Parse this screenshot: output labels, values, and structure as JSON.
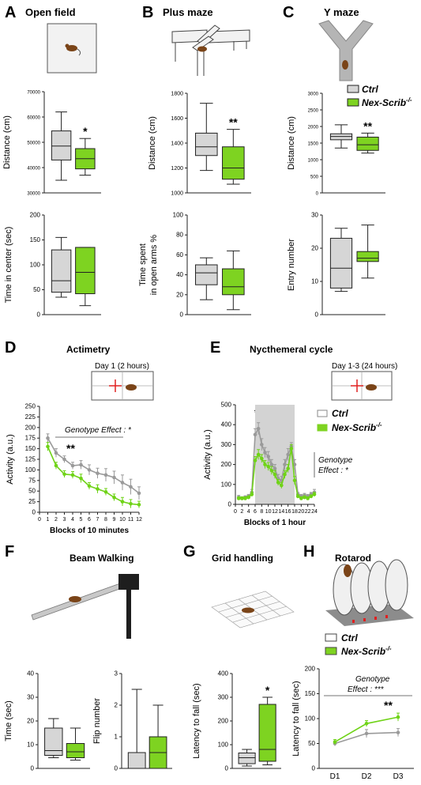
{
  "colors": {
    "ctrl_fill": "#d6d6d6",
    "mut_fill": "#7ed321",
    "ctrl_line": "#9a9a9a",
    "mut_line": "#6fd317",
    "stroke": "#222222",
    "shade": "#d3d3d3",
    "mouse": "#7a4418",
    "arrow": "#e02020"
  },
  "legend": {
    "ctrl": "Ctrl",
    "mut_base": "Nex-Scrib",
    "mut_sup": "-/-"
  },
  "panels": {
    "A": {
      "letter": "A",
      "title": "Open field"
    },
    "B": {
      "letter": "B",
      "title": "Plus maze"
    },
    "C": {
      "letter": "C",
      "title": "Y maze"
    },
    "D": {
      "letter": "D",
      "title": "Actimetry",
      "box_label": "Day 1 (2 hours)",
      "effect": "Genotype Effect : *",
      "star": "**"
    },
    "E": {
      "letter": "E",
      "title": "Nycthemeral cycle",
      "box_label": "Day 1-3 (24 hours)",
      "effect_line1": "Genotype",
      "effect_line2": "Effect : *",
      "star": "***"
    },
    "F": {
      "letter": "F",
      "title": "Beam Walking"
    },
    "G": {
      "letter": "G",
      "title": "Grid handling"
    },
    "H": {
      "letter": "H",
      "title": "Rotarod",
      "effect_line1": "Genotype",
      "effect_line2": "Effect : ***",
      "star": "**"
    }
  },
  "chart_data": [
    {
      "id": "A1",
      "type": "box",
      "ylabel": "Distance (cm)",
      "ylim": [
        30000,
        70000
      ],
      "yticks": [
        30000,
        40000,
        50000,
        60000,
        70000
      ],
      "star": "*",
      "groups": [
        {
          "name": "Ctrl",
          "whisker_low": 35000,
          "q1": 43000,
          "median": 48500,
          "q3": 54500,
          "whisker_high": 62000
        },
        {
          "name": "Nex-Scrib-/-",
          "whisker_low": 37000,
          "q1": 39500,
          "median": 43500,
          "q3": 47500,
          "whisker_high": 51500
        }
      ]
    },
    {
      "id": "A2",
      "type": "box",
      "ylabel": "Time in center (sec)",
      "ylim": [
        0,
        200
      ],
      "yticks": [
        0,
        50,
        100,
        150,
        200
      ],
      "star": "",
      "groups": [
        {
          "name": "Ctrl",
          "whisker_low": 35,
          "q1": 45,
          "median": 68,
          "q3": 130,
          "whisker_high": 155
        },
        {
          "name": "Nex-Scrib-/-",
          "whisker_low": 18,
          "q1": 42,
          "median": 85,
          "q3": 135,
          "whisker_high": 135
        }
      ]
    },
    {
      "id": "B1",
      "type": "box",
      "ylabel": "Distance (cm)",
      "ylim": [
        1000,
        1800
      ],
      "yticks": [
        1000,
        1200,
        1400,
        1600,
        1800
      ],
      "star": "**",
      "groups": [
        {
          "name": "Ctrl",
          "whisker_low": 1180,
          "q1": 1300,
          "median": 1370,
          "q3": 1480,
          "whisker_high": 1720
        },
        {
          "name": "Nex-Scrib-/-",
          "whisker_low": 1070,
          "q1": 1110,
          "median": 1200,
          "q3": 1370,
          "whisker_high": 1510
        }
      ]
    },
    {
      "id": "B2",
      "type": "box",
      "ylabel": "Time spent in open arms %",
      "ylabel_line1": "Time spent",
      "ylabel_line2": "in open arms %",
      "ylim": [
        0,
        100
      ],
      "yticks": [
        0,
        20,
        40,
        60,
        80,
        100
      ],
      "star": "",
      "groups": [
        {
          "name": "Ctrl",
          "whisker_low": 15,
          "q1": 30,
          "median": 42,
          "q3": 50,
          "whisker_high": 57
        },
        {
          "name": "Nex-Scrib-/-",
          "whisker_low": 5,
          "q1": 20,
          "median": 28,
          "q3": 46,
          "whisker_high": 64
        }
      ]
    },
    {
      "id": "C1",
      "type": "box",
      "ylabel": "Distance (cm)",
      "ylim": [
        0,
        3000
      ],
      "yticks": [
        0,
        500,
        1000,
        1500,
        2000,
        2500,
        3000
      ],
      "star": "**",
      "groups": [
        {
          "name": "Ctrl",
          "whisker_low": 1350,
          "q1": 1600,
          "median": 1700,
          "q3": 1780,
          "whisker_high": 2050
        },
        {
          "name": "Nex-Scrib-/-",
          "whisker_low": 1200,
          "q1": 1280,
          "median": 1450,
          "q3": 1680,
          "whisker_high": 1800
        }
      ]
    },
    {
      "id": "C2",
      "type": "box",
      "ylabel": "Entry number",
      "ylim": [
        0,
        30
      ],
      "yticks": [
        0,
        10,
        20,
        30
      ],
      "star": "",
      "groups": [
        {
          "name": "Ctrl",
          "whisker_low": 7,
          "q1": 8,
          "median": 14,
          "q3": 23,
          "whisker_high": 26
        },
        {
          "name": "Nex-Scrib-/-",
          "whisker_low": 11,
          "q1": 16,
          "median": 17,
          "q3": 19,
          "whisker_high": 27
        }
      ]
    },
    {
      "id": "D",
      "type": "line",
      "ylabel": "Activity (a.u.)",
      "xlabel": "Blocks of 10 minutes",
      "ylim": [
        0,
        250
      ],
      "yticks": [
        0,
        25,
        50,
        75,
        100,
        125,
        150,
        175,
        200,
        225,
        250
      ],
      "xlim": [
        0,
        12
      ],
      "xticks": [
        0,
        1,
        2,
        3,
        4,
        5,
        6,
        7,
        8,
        9,
        10,
        11,
        12
      ],
      "x": [
        1,
        2,
        3,
        4,
        5,
        6,
        7,
        8,
        9,
        10,
        11,
        12
      ],
      "series": [
        {
          "name": "Ctrl",
          "values": [
            175,
            140,
            125,
            110,
            112,
            100,
            92,
            88,
            82,
            70,
            60,
            45
          ],
          "err": [
            10,
            10,
            8,
            8,
            10,
            12,
            12,
            15,
            15,
            18,
            18,
            15
          ]
        },
        {
          "name": "Nex-Scrib-/-",
          "values": [
            155,
            110,
            90,
            88,
            80,
            62,
            55,
            48,
            35,
            25,
            20,
            18
          ],
          "err": [
            10,
            8,
            8,
            8,
            10,
            8,
            10,
            8,
            8,
            10,
            10,
            8
          ]
        }
      ]
    },
    {
      "id": "E",
      "type": "line",
      "ylabel": "Activity (a.u.)",
      "xlabel": "Blocks of 1 hour",
      "ylim": [
        0,
        500
      ],
      "yticks": [
        0,
        100,
        200,
        300,
        400,
        500
      ],
      "xlim": [
        0,
        24
      ],
      "xticks": [
        0,
        2,
        4,
        6,
        8,
        10,
        12,
        14,
        16,
        18,
        20,
        22,
        24
      ],
      "shaded": [
        6,
        18
      ],
      "x": [
        1,
        2,
        3,
        4,
        5,
        6,
        7,
        8,
        9,
        10,
        11,
        12,
        13,
        14,
        15,
        16,
        17,
        18,
        19,
        20,
        21,
        22,
        23,
        24
      ],
      "series": [
        {
          "name": "Ctrl",
          "values": [
            35,
            30,
            35,
            40,
            60,
            350,
            380,
            300,
            260,
            240,
            200,
            180,
            130,
            120,
            200,
            250,
            290,
            200,
            50,
            40,
            45,
            40,
            50,
            60
          ],
          "err": [
            10,
            8,
            8,
            10,
            15,
            30,
            30,
            30,
            25,
            25,
            25,
            20,
            20,
            20,
            25,
            30,
            20,
            25,
            10,
            10,
            10,
            10,
            10,
            15
          ]
        },
        {
          "name": "Nex-Scrib-/-",
          "values": [
            30,
            30,
            30,
            35,
            50,
            220,
            250,
            230,
            200,
            190,
            170,
            150,
            110,
            95,
            150,
            180,
            280,
            120,
            40,
            30,
            35,
            30,
            40,
            50
          ],
          "err": [
            8,
            8,
            8,
            8,
            10,
            20,
            25,
            20,
            20,
            20,
            20,
            20,
            15,
            15,
            20,
            20,
            20,
            20,
            8,
            8,
            8,
            8,
            8,
            10
          ]
        }
      ]
    },
    {
      "id": "F1",
      "type": "box",
      "ylabel": "Time (sec)",
      "ylim": [
        0,
        40
      ],
      "yticks": [
        0,
        10,
        20,
        30,
        40
      ],
      "star": "",
      "groups": [
        {
          "name": "Ctrl",
          "whisker_low": 4.5,
          "q1": 5.5,
          "median": 7.5,
          "q3": 17,
          "whisker_high": 21
        },
        {
          "name": "Nex-Scrib-/-",
          "whisker_low": 3.5,
          "q1": 4.5,
          "median": 7,
          "q3": 10.5,
          "whisker_high": 17
        }
      ]
    },
    {
      "id": "F2",
      "type": "box",
      "ylabel": "Flip number",
      "ylim": [
        0,
        3
      ],
      "yticks": [
        0,
        1,
        2,
        3
      ],
      "star": "",
      "groups": [
        {
          "name": "Ctrl",
          "whisker_low": 0,
          "q1": 0,
          "median": 0,
          "q3": 0.5,
          "whisker_high": 2.5
        },
        {
          "name": "Nex-Scrib-/-",
          "whisker_low": 0,
          "q1": 0,
          "median": 0.5,
          "q3": 1,
          "whisker_high": 2
        }
      ]
    },
    {
      "id": "G",
      "type": "box",
      "ylabel": "Latency to fall (sec)",
      "ylim": [
        0,
        400
      ],
      "yticks": [
        0,
        100,
        200,
        300,
        400
      ],
      "star": "*",
      "groups": [
        {
          "name": "Ctrl",
          "whisker_low": 10,
          "q1": 20,
          "median": 45,
          "q3": 65,
          "whisker_high": 80
        },
        {
          "name": "Nex-Scrib-/-",
          "whisker_low": 15,
          "q1": 30,
          "median": 80,
          "q3": 270,
          "whisker_high": 300
        }
      ]
    },
    {
      "id": "H",
      "type": "line",
      "ylabel": "Latency to fall (sec)",
      "ylim": [
        0,
        200
      ],
      "yticks": [
        0,
        50,
        100,
        150,
        200
      ],
      "categories": [
        "D1",
        "D2",
        "D3"
      ],
      "series": [
        {
          "name": "Ctrl",
          "values": [
            50,
            70,
            72
          ],
          "err": [
            5,
            8,
            8
          ]
        },
        {
          "name": "Nex-Scrib-/-",
          "values": [
            53,
            90,
            103
          ],
          "err": [
            5,
            6,
            8
          ]
        }
      ]
    }
  ]
}
